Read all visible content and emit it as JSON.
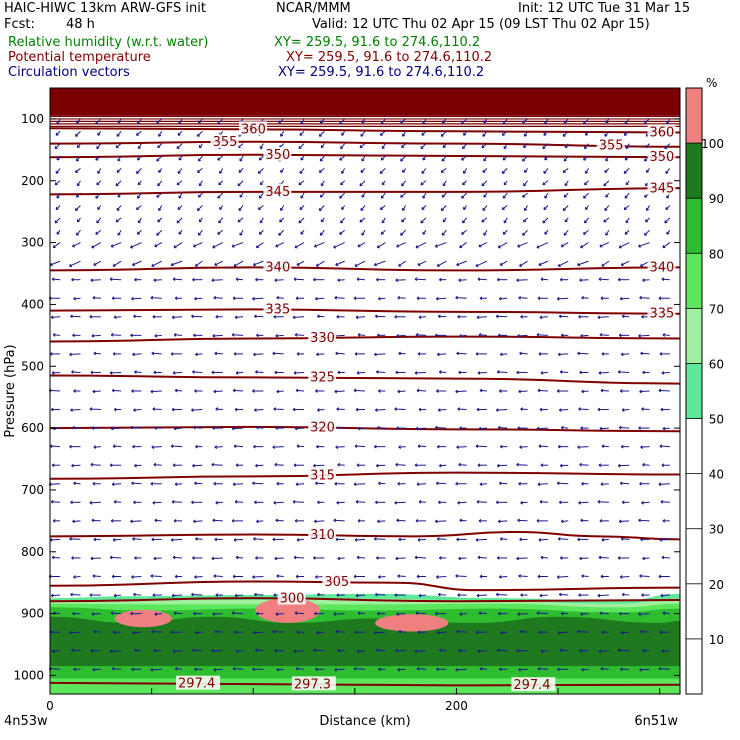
{
  "header": {
    "model": "HAIC-HIWC 13km ARW-GFS init",
    "org": "NCAR/MMM",
    "init": "Init: 12 UTC Tue 31 Mar 15",
    "fcst_label": "Fcst:",
    "fcst_value": "48 h",
    "valid": "Valid: 12 UTC Thu 02 Apr 15 (09 LST Thu 02 Apr 15)",
    "field1": "Relative humidity (w.r.t. water)",
    "field2": "Potential temperature",
    "field3": "Circulation vectors",
    "xy1": "XY= 259.5, 91.6 to 274.6,110.2",
    "xy2": "XY= 259.5, 91.6 to 274.6,110.2",
    "xy3": "XY= 259.5, 91.6 to 274.6,110.2",
    "color_field1": "#008000",
    "color_field2": "#800000",
    "color_field3": "#000080"
  },
  "chart_data": {
    "type": "cross-section",
    "ylabel": "Pressure (hPa)",
    "xlabel": "Distance (km)",
    "x_start_label": "4n53w",
    "x_end_label": "6n51w",
    "x_ticks": [
      0,
      200
    ],
    "xlim": [
      0,
      310
    ],
    "y_ticks": [
      100,
      200,
      300,
      400,
      500,
      600,
      700,
      800,
      900,
      1000
    ],
    "ylim": [
      50,
      1030
    ],
    "colorbar": {
      "unit": "%",
      "levels": [
        10,
        20,
        30,
        40,
        50,
        60,
        70,
        80,
        90,
        100
      ],
      "band_colors": [
        {
          "from": 50,
          "to": 60,
          "color": "#5ee89a"
        },
        {
          "from": 60,
          "to": 70,
          "color": "#a0f0a0"
        },
        {
          "from": 70,
          "to": 80,
          "color": "#5ce65c"
        },
        {
          "from": 80,
          "to": 90,
          "color": "#2ebd2e"
        },
        {
          "from": 90,
          "to": 100,
          "color": "#1f7a1f"
        },
        {
          "from": 100,
          "to": 110,
          "color": "#f08080"
        }
      ]
    },
    "theta_contours": [
      {
        "value": 360,
        "labels": [
          {
            "x": 94,
            "text": "360"
          },
          {
            "x": 295,
            "text": "360"
          }
        ],
        "points": [
          [
            0,
            115
          ],
          [
            100,
            117
          ],
          [
            200,
            120
          ],
          [
            310,
            122
          ]
        ]
      },
      {
        "value": 355,
        "labels": [
          {
            "x": 80,
            "text": "355"
          },
          {
            "x": 270,
            "text": "355"
          }
        ],
        "points": [
          [
            0,
            140
          ],
          [
            100,
            137
          ],
          [
            200,
            140
          ],
          [
            310,
            145
          ]
        ]
      },
      {
        "value": 350,
        "labels": [
          {
            "x": 106,
            "text": "350"
          },
          {
            "x": 295,
            "text": "350"
          }
        ],
        "points": [
          [
            0,
            162
          ],
          [
            100,
            158
          ],
          [
            200,
            160
          ],
          [
            310,
            162
          ]
        ]
      },
      {
        "value": 345,
        "labels": [
          {
            "x": 106,
            "text": "345"
          },
          {
            "x": 295,
            "text": "345"
          }
        ],
        "points": [
          [
            0,
            222
          ],
          [
            100,
            218
          ],
          [
            200,
            218
          ],
          [
            310,
            212
          ]
        ]
      },
      {
        "value": 340,
        "labels": [
          {
            "x": 106,
            "text": "340"
          },
          {
            "x": 295,
            "text": "340"
          }
        ],
        "points": [
          [
            0,
            345
          ],
          [
            100,
            340
          ],
          [
            200,
            345
          ],
          [
            310,
            340
          ]
        ]
      },
      {
        "value": 335,
        "labels": [
          {
            "x": 106,
            "text": "335"
          },
          {
            "x": 295,
            "text": "335"
          }
        ],
        "points": [
          [
            0,
            410
          ],
          [
            100,
            408
          ],
          [
            200,
            412
          ],
          [
            310,
            415
          ]
        ]
      },
      {
        "value": 330,
        "labels": [
          {
            "x": 128,
            "text": "330"
          }
        ],
        "points": [
          [
            0,
            460
          ],
          [
            100,
            455
          ],
          [
            200,
            452
          ],
          [
            310,
            455
          ]
        ]
      },
      {
        "value": 325,
        "labels": [
          {
            "x": 128,
            "text": "325"
          }
        ],
        "points": [
          [
            0,
            515
          ],
          [
            100,
            518
          ],
          [
            200,
            520
          ],
          [
            310,
            528
          ]
        ]
      },
      {
        "value": 320,
        "labels": [
          {
            "x": 128,
            "text": "320"
          }
        ],
        "points": [
          [
            0,
            600
          ],
          [
            100,
            598
          ],
          [
            200,
            602
          ],
          [
            310,
            605
          ]
        ]
      },
      {
        "value": 315,
        "labels": [
          {
            "x": 128,
            "text": "315"
          }
        ],
        "points": [
          [
            0,
            682
          ],
          [
            100,
            678
          ],
          [
            200,
            672
          ],
          [
            310,
            675
          ]
        ]
      },
      {
        "value": 310,
        "labels": [
          {
            "x": 128,
            "text": "310"
          }
        ],
        "points": [
          [
            0,
            775
          ],
          [
            100,
            772
          ],
          [
            180,
            775
          ],
          [
            230,
            768
          ],
          [
            270,
            775
          ],
          [
            310,
            780
          ]
        ]
      },
      {
        "value": 305,
        "labels": [
          {
            "x": 135,
            "text": "305"
          }
        ],
        "points": [
          [
            0,
            855
          ],
          [
            100,
            848
          ],
          [
            170,
            850
          ],
          [
            210,
            862
          ],
          [
            310,
            858
          ]
        ]
      },
      {
        "value": 300,
        "labels": [
          {
            "x": 113,
            "text": "300"
          }
        ],
        "points": [
          [
            0,
            880
          ],
          [
            100,
            875
          ],
          [
            200,
            880
          ],
          [
            310,
            878
          ]
        ]
      },
      {
        "value": 297.4,
        "labels": [
          {
            "x": 63,
            "text": "297.4"
          },
          {
            "x": 120,
            "text": "297.3"
          },
          {
            "x": 228,
            "text": "297.4"
          }
        ],
        "points": [
          [
            0,
            1012
          ],
          [
            100,
            1014
          ],
          [
            200,
            1016
          ],
          [
            310,
            1015
          ]
        ]
      }
    ],
    "rh_regions": [
      {
        "level": 50,
        "top": [
          [
            0,
            875
          ],
          [
            40,
            872
          ],
          [
            100,
            870
          ],
          [
            160,
            868
          ],
          [
            220,
            875
          ],
          [
            280,
            880
          ],
          [
            310,
            868
          ]
        ],
        "bottom": 1030
      },
      {
        "level": 60,
        "top": [
          [
            0,
            880
          ],
          [
            40,
            878
          ],
          [
            100,
            878
          ],
          [
            160,
            876
          ],
          [
            220,
            880
          ],
          [
            280,
            884
          ],
          [
            310,
            876
          ]
        ],
        "bottom": 1030
      },
      {
        "level": 70,
        "top": [
          [
            0,
            884
          ],
          [
            50,
            885
          ],
          [
            100,
            885
          ],
          [
            160,
            885
          ],
          [
            220,
            884
          ],
          [
            280,
            890
          ],
          [
            310,
            884
          ]
        ],
        "bottom": 1030
      },
      {
        "level": 80,
        "top": [
          [
            0,
            890
          ],
          [
            50,
            895
          ],
          [
            100,
            892
          ],
          [
            160,
            895
          ],
          [
            220,
            892
          ],
          [
            280,
            898
          ],
          [
            310,
            892
          ]
        ],
        "bottom": 1005
      },
      {
        "level": 90,
        "top": [
          [
            0,
            905
          ],
          [
            40,
            915
          ],
          [
            80,
            905
          ],
          [
            120,
            915
          ],
          [
            160,
            908
          ],
          [
            210,
            915
          ],
          [
            250,
            905
          ],
          [
            300,
            915
          ],
          [
            310,
            912
          ]
        ],
        "bottom": 985
      }
    ],
    "saturated_pockets": [
      {
        "cx": 46,
        "cy": 908,
        "rx": 14,
        "ry": 14
      },
      {
        "cx": 117,
        "cy": 895,
        "rx": 16,
        "ry": 20
      },
      {
        "cx": 178,
        "cy": 915,
        "rx": 18,
        "ry": 14
      }
    ],
    "vector_rows_hpa": [
      100,
      120,
      140,
      160,
      180,
      200,
      220,
      240,
      260,
      280,
      300,
      330,
      360,
      390,
      420,
      450,
      480,
      510,
      540,
      570,
      600,
      630,
      660,
      690,
      720,
      750,
      780,
      810,
      840,
      870,
      900,
      930,
      960,
      990
    ],
    "vector_columns_km": [
      5,
      15,
      25,
      35,
      45,
      55,
      65,
      75,
      85,
      95,
      105,
      115,
      125,
      135,
      145,
      155,
      165,
      175,
      185,
      195,
      205,
      215,
      225,
      235,
      245,
      255,
      265,
      275,
      285,
      295,
      305
    ]
  }
}
